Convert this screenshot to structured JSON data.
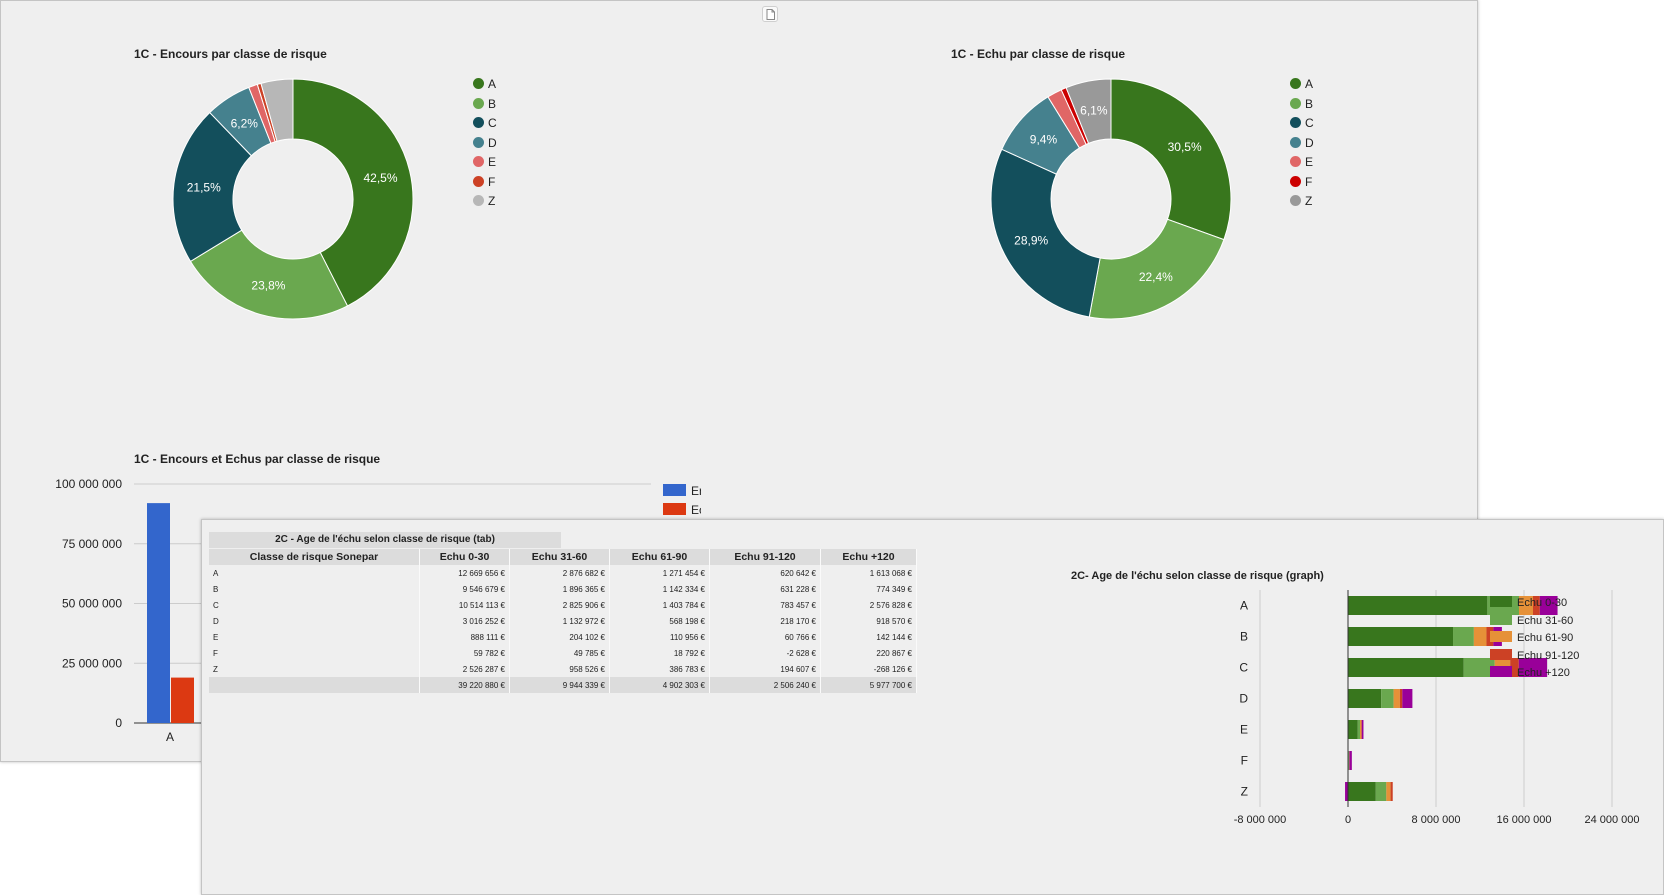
{
  "chart_data": [
    {
      "type": "pie",
      "title": "1C - Encours par classe de risque",
      "hole": true,
      "categories": [
        "A",
        "B",
        "C",
        "D",
        "E",
        "F",
        "Z"
      ],
      "values": [
        42.5,
        23.8,
        21.5,
        6.2,
        1.2,
        0.5,
        4.3
      ],
      "labels": [
        "42,5%",
        "23,8%",
        "21,5%",
        "6,2%",
        "",
        "",
        ""
      ],
      "colors": [
        "#38761d",
        "#6aa84f",
        "#134f5c",
        "#45818e",
        "#e06666",
        "#cc4125",
        "#b7b7b7"
      ],
      "legend": "right"
    },
    {
      "type": "pie",
      "title": "1C - Echu par classe de risque",
      "hole": true,
      "categories": [
        "A",
        "B",
        "C",
        "D",
        "E",
        "F",
        "Z"
      ],
      "values": [
        30.5,
        22.4,
        28.9,
        9.4,
        2.0,
        0.7,
        6.1
      ],
      "labels": [
        "30,5%",
        "22,4%",
        "28,9%",
        "9,4%",
        "",
        "",
        "6,1%"
      ],
      "colors": [
        "#38761d",
        "#6aa84f",
        "#134f5c",
        "#45818e",
        "#e06666",
        "#cc0000",
        "#999999"
      ],
      "legend": "right"
    },
    {
      "type": "bar",
      "title": "1C - Encours et Echus par classe de risque",
      "categories": [
        "A"
      ],
      "series": [
        {
          "name": "Encours",
          "values": [
            92000000
          ],
          "color": "#3366cc"
        },
        {
          "name": "Echus",
          "values": [
            19000000
          ],
          "color": "#dc3912"
        }
      ],
      "ylim": [
        0,
        100000000
      ],
      "yticks": [
        "0",
        "25 000 000",
        "50 000 000",
        "75 000 000",
        "100 000 000"
      ],
      "ytick_values": [
        0,
        25000000,
        50000000,
        75000000,
        100000000
      ],
      "legend": "right"
    },
    {
      "type": "table",
      "title": "2C - Age de l'échu selon classe de risque (tab)",
      "columns": [
        "Classe de risque Sonepar",
        "Echu 0-30",
        "Echu 31-60",
        "Echu 61-90",
        "Echu 91-120",
        "Echu +120"
      ],
      "rows": [
        [
          "A",
          "12 669 656 €",
          "2 876 682 €",
          "1 271 454 €",
          "620 642 €",
          "1 613 068 €"
        ],
        [
          "B",
          "9 546 679 €",
          "1 896 365 €",
          "1 142 334 €",
          "631 228 €",
          "774 349 €"
        ],
        [
          "C",
          "10 514 113 €",
          "2 825 906 €",
          "1 403 784 €",
          "783 457 €",
          "2 576 828 €"
        ],
        [
          "D",
          "3 016 252 €",
          "1 132 972 €",
          "568 198 €",
          "218 170 €",
          "918 570 €"
        ],
        [
          "E",
          "888 111 €",
          "204 102 €",
          "110 956 €",
          "60 766 €",
          "142 144 €"
        ],
        [
          "F",
          "59 782 €",
          "49 785 €",
          "18 792 €",
          "-2 628 €",
          "220 867 €"
        ],
        [
          "Z",
          "2 526 287 €",
          "958 526 €",
          "386 783 €",
          "194 607 €",
          "-268 126 €"
        ]
      ],
      "total": [
        "",
        "39 220 880 €",
        "9 944 339 €",
        "4 902 303 €",
        "2 506 240 €",
        "5 977 700 €"
      ]
    },
    {
      "type": "bar",
      "orientation": "horizontal",
      "stacked": true,
      "title": "2C- Age de l'échu selon classe de risque (graph)",
      "categories": [
        "A",
        "B",
        "C",
        "D",
        "E",
        "F",
        "Z"
      ],
      "series": [
        {
          "name": "Echu 0-30",
          "color": "#38761d",
          "values": [
            12669656,
            9546679,
            10514113,
            3016252,
            888111,
            59782,
            2526287
          ]
        },
        {
          "name": "Echu 31-60",
          "color": "#6aa84f",
          "values": [
            2876682,
            1896365,
            2825906,
            1132972,
            204102,
            49785,
            958526
          ]
        },
        {
          "name": "Echu 61-90",
          "color": "#e69138",
          "values": [
            1271454,
            1142334,
            1403784,
            568198,
            110956,
            18792,
            386783
          ]
        },
        {
          "name": "Echu 91-120",
          "color": "#cc4125",
          "values": [
            620642,
            631228,
            783457,
            218170,
            60766,
            -2628,
            194607
          ]
        },
        {
          "name": "Echu +120",
          "color": "#990099",
          "values": [
            1613068,
            774349,
            2576828,
            918570,
            142144,
            220867,
            -268126
          ]
        }
      ],
      "xlim": [
        -8000000,
        24000000
      ],
      "xticks": [
        "-8 000 000",
        "0",
        "8 000 000",
        "16 000 000",
        "24 000 000"
      ],
      "xtick_values": [
        -8000000,
        0,
        8000000,
        16000000,
        24000000
      ],
      "legend": "right"
    }
  ]
}
